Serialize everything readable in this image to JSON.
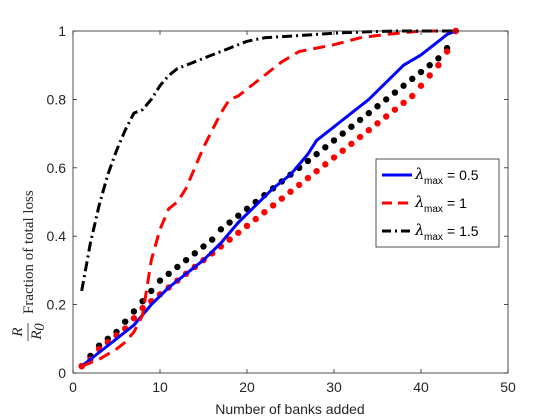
{
  "chart_data": {
    "type": "line",
    "xlabel": "Number of banks added",
    "ylabel": {
      "frac_num": "R",
      "frac_den": "R",
      "frac_den_sub": "0",
      "text": "Fraction of total loss"
    },
    "xlim": [
      0,
      50
    ],
    "ylim": [
      0,
      1
    ],
    "xticks": [
      "0",
      "10",
      "20",
      "30",
      "40",
      "50"
    ],
    "yticks": [
      "0",
      "0.2",
      "0.4",
      "0.6",
      "0.8",
      "1"
    ],
    "legend_position": "right",
    "series": [
      {
        "name": "λmax = 0.5",
        "legend_symbol": "λ",
        "legend_sub": "max",
        "legend_value": "= 0.5",
        "color": "#0000ff",
        "style": "solid",
        "x": [
          1,
          3,
          5,
          7,
          9,
          11,
          13,
          15,
          17,
          19,
          21,
          23,
          25,
          26,
          27,
          28,
          30,
          32,
          34,
          36,
          38,
          40,
          42,
          43,
          44
        ],
        "y": [
          0.02,
          0.06,
          0.1,
          0.14,
          0.2,
          0.25,
          0.29,
          0.33,
          0.38,
          0.44,
          0.49,
          0.54,
          0.58,
          0.61,
          0.64,
          0.68,
          0.72,
          0.76,
          0.8,
          0.85,
          0.9,
          0.93,
          0.97,
          0.99,
          1.0
        ]
      },
      {
        "name": "λmax = 1",
        "legend_symbol": "λ",
        "legend_sub": "max",
        "legend_value": "= 1",
        "color": "#ff0000",
        "style": "dashed",
        "x": [
          1,
          3,
          5,
          6,
          7,
          8,
          9,
          10,
          11,
          12,
          13,
          14,
          15,
          16,
          17,
          18,
          19,
          20,
          22,
          24,
          26,
          28,
          30,
          33,
          36,
          40,
          44
        ],
        "y": [
          0.02,
          0.04,
          0.07,
          0.09,
          0.12,
          0.17,
          0.33,
          0.42,
          0.48,
          0.5,
          0.54,
          0.6,
          0.66,
          0.71,
          0.76,
          0.8,
          0.81,
          0.83,
          0.87,
          0.91,
          0.94,
          0.95,
          0.96,
          0.98,
          0.99,
          1.0,
          1.0
        ]
      },
      {
        "name": "λmax = 1.5",
        "legend_symbol": "λ",
        "legend_sub": "max",
        "legend_value": "= 1.5",
        "color": "#000000",
        "style": "dashdot",
        "x": [
          1,
          2,
          3,
          4,
          5,
          6,
          7,
          8,
          9,
          10,
          11,
          12,
          14,
          16,
          18,
          20,
          22,
          25,
          28,
          31,
          34,
          37,
          40,
          44
        ],
        "y": [
          0.24,
          0.38,
          0.49,
          0.58,
          0.65,
          0.71,
          0.76,
          0.77,
          0.8,
          0.84,
          0.87,
          0.89,
          0.91,
          0.93,
          0.95,
          0.97,
          0.98,
          0.985,
          0.99,
          0.995,
          0.998,
          1.0,
          1.0,
          1.0
        ]
      },
      {
        "name": "",
        "color": "#000000",
        "style": "dotted",
        "x": [
          1,
          2,
          3,
          4,
          5,
          6,
          7,
          8,
          9,
          10,
          11,
          12,
          13,
          14,
          15,
          16,
          17,
          18,
          19,
          20,
          21,
          22,
          23,
          24,
          25,
          26,
          27,
          28,
          29,
          30,
          31,
          32,
          33,
          34,
          35,
          36,
          37,
          38,
          39,
          40,
          41,
          42,
          43,
          44
        ],
        "y": [
          0.02,
          0.05,
          0.08,
          0.1,
          0.12,
          0.15,
          0.18,
          0.21,
          0.24,
          0.27,
          0.29,
          0.31,
          0.33,
          0.35,
          0.37,
          0.39,
          0.42,
          0.44,
          0.46,
          0.48,
          0.5,
          0.52,
          0.54,
          0.56,
          0.58,
          0.6,
          0.62,
          0.64,
          0.66,
          0.68,
          0.7,
          0.72,
          0.74,
          0.76,
          0.78,
          0.8,
          0.82,
          0.84,
          0.86,
          0.88,
          0.9,
          0.92,
          0.95,
          1.0
        ]
      },
      {
        "name": "",
        "color": "#ff0000",
        "style": "dotted",
        "x": [
          1,
          2,
          3,
          4,
          5,
          6,
          7,
          8,
          9,
          10,
          11,
          12,
          13,
          14,
          15,
          16,
          17,
          18,
          19,
          20,
          21,
          22,
          23,
          24,
          25,
          26,
          27,
          28,
          29,
          30,
          31,
          32,
          33,
          34,
          35,
          36,
          37,
          38,
          39,
          40,
          41,
          42,
          43,
          44
        ],
        "y": [
          0.02,
          0.04,
          0.07,
          0.09,
          0.11,
          0.13,
          0.16,
          0.19,
          0.21,
          0.23,
          0.25,
          0.27,
          0.29,
          0.31,
          0.33,
          0.35,
          0.37,
          0.39,
          0.41,
          0.43,
          0.45,
          0.47,
          0.49,
          0.51,
          0.53,
          0.55,
          0.57,
          0.59,
          0.61,
          0.63,
          0.65,
          0.67,
          0.69,
          0.71,
          0.73,
          0.75,
          0.77,
          0.79,
          0.81,
          0.84,
          0.87,
          0.9,
          0.94,
          1.0
        ]
      }
    ]
  }
}
